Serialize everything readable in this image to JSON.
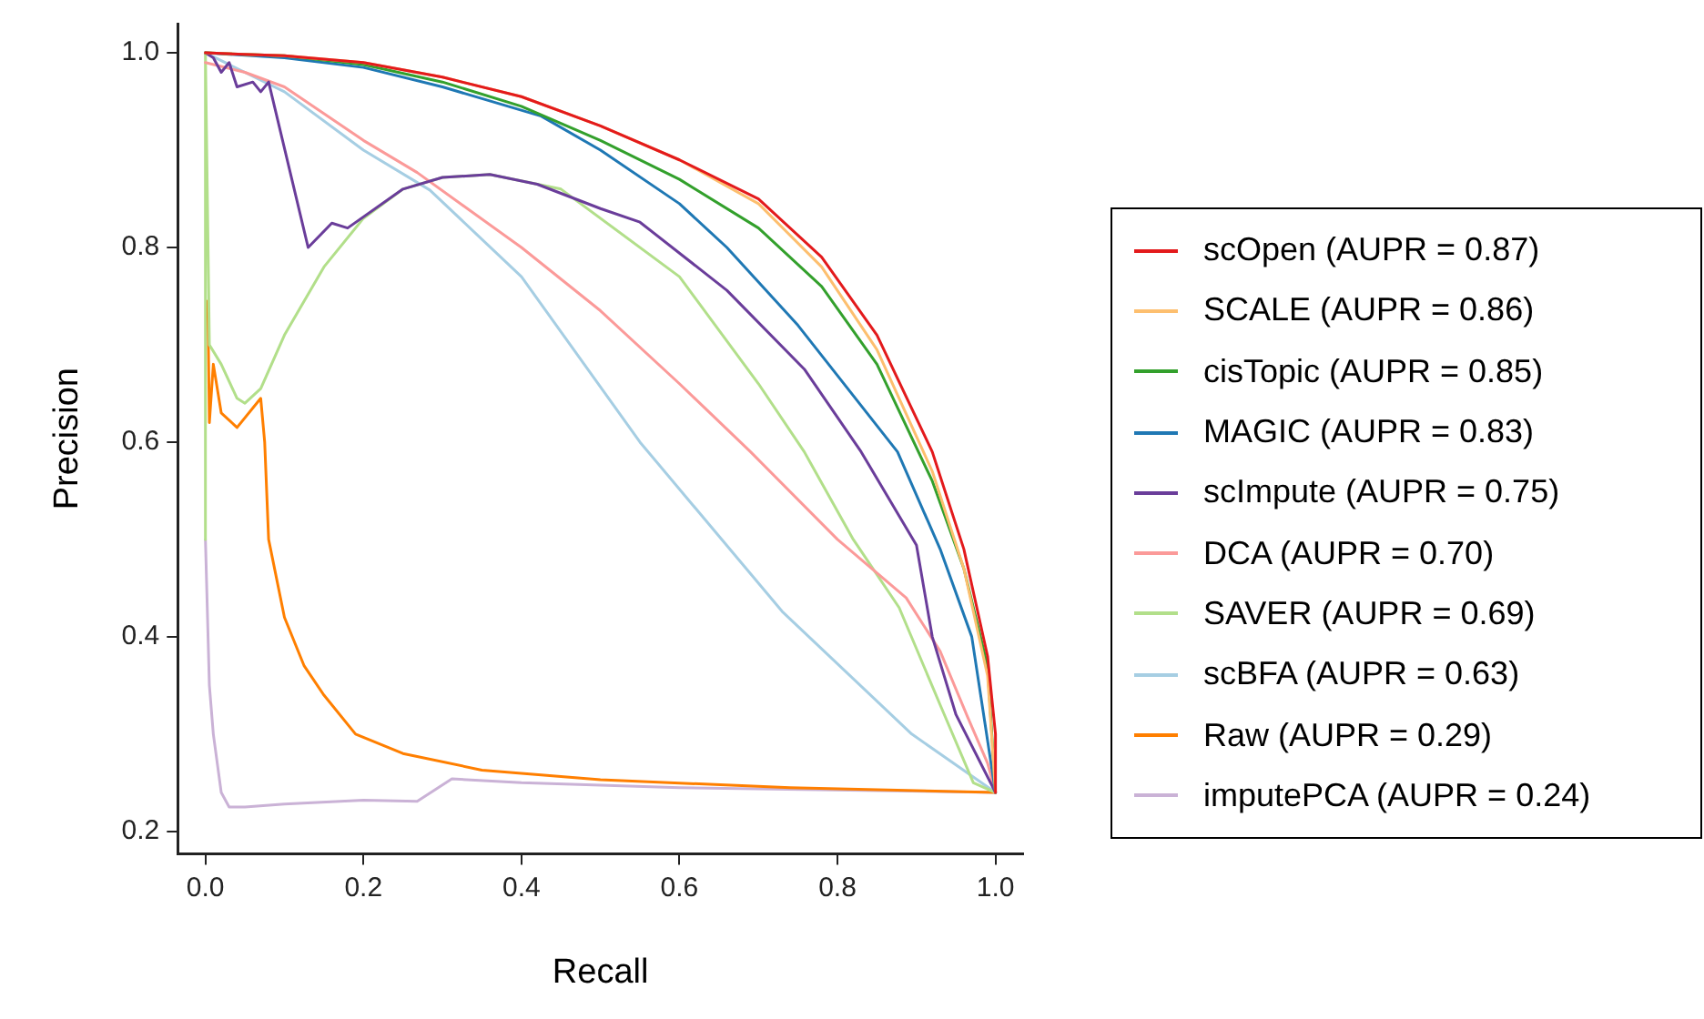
{
  "chart_data": {
    "type": "line",
    "xlabel": "Recall",
    "ylabel": "Precision",
    "xlim": [
      -0.035,
      1.035
    ],
    "ylim": [
      0.177,
      1.03
    ],
    "xticks": [
      {
        "value": 0,
        "label": "0.0"
      },
      0.2,
      0.4,
      0.6,
      0.8,
      {
        "value": 1,
        "label": "1.0"
      }
    ],
    "yticks": [
      0.2,
      0.4,
      0.6,
      0.8,
      {
        "value": 1,
        "label": "1.0"
      }
    ],
    "grid": false,
    "legend": "right",
    "marker": "none",
    "line_style": "solid",
    "series": [
      {
        "name": "scOpen (AUPR = 0.87)",
        "color": "#e31a1c",
        "x": [
          0,
          0.1,
          0.2,
          0.3,
          0.4,
          0.5,
          0.6,
          0.7,
          0.78,
          0.85,
          0.92,
          0.96,
          0.99,
          1,
          1
        ],
        "values": [
          1,
          0.997,
          0.99,
          0.975,
          0.955,
          0.925,
          0.89,
          0.85,
          0.79,
          0.71,
          0.59,
          0.49,
          0.38,
          0.3,
          0.24
        ]
      },
      {
        "name": "SCALE (AUPR = 0.86)",
        "color": "#fdbf6f",
        "x": [
          0,
          0.1,
          0.2,
          0.3,
          0.4,
          0.5,
          0.6,
          0.7,
          0.78,
          0.85,
          0.92,
          0.96,
          0.99,
          1
        ],
        "values": [
          1,
          0.997,
          0.99,
          0.975,
          0.955,
          0.925,
          0.89,
          0.845,
          0.78,
          0.695,
          0.57,
          0.47,
          0.36,
          0.24
        ]
      },
      {
        "name": "cisTopic (AUPR = 0.85)",
        "color": "#33a02c",
        "x": [
          0,
          0.1,
          0.2,
          0.3,
          0.4,
          0.5,
          0.6,
          0.7,
          0.78,
          0.85,
          0.92,
          0.96,
          0.99,
          1
        ],
        "values": [
          1,
          0.997,
          0.988,
          0.97,
          0.945,
          0.91,
          0.87,
          0.82,
          0.76,
          0.68,
          0.56,
          0.47,
          0.37,
          0.24
        ]
      },
      {
        "name": "MAGIC (AUPR = 0.83)",
        "color": "#1f78b4",
        "x": [
          0,
          0.1,
          0.2,
          0.3,
          0.425,
          0.5,
          0.6,
          0.66,
          0.75,
          0.876,
          0.93,
          0.97,
          1
        ],
        "values": [
          1,
          0.995,
          0.985,
          0.965,
          0.935,
          0.9,
          0.845,
          0.8,
          0.72,
          0.59,
          0.49,
          0.4,
          0.24
        ]
      },
      {
        "name": "scImpute (AUPR = 0.75)",
        "color": "#6a3d9a",
        "x": [
          0,
          0.01,
          0.02,
          0.03,
          0.04,
          0.06,
          0.07,
          0.08,
          0.13,
          0.16,
          0.18,
          0.25,
          0.3,
          0.36,
          0.42,
          0.5,
          0.55,
          0.66,
          0.758,
          0.83,
          0.9,
          0.92,
          0.95,
          1
        ],
        "values": [
          1,
          0.995,
          0.98,
          0.99,
          0.965,
          0.97,
          0.96,
          0.97,
          0.8,
          0.825,
          0.82,
          0.86,
          0.872,
          0.875,
          0.865,
          0.84,
          0.826,
          0.756,
          0.675,
          0.59,
          0.494,
          0.4,
          0.32,
          0.24
        ]
      },
      {
        "name": "DCA (AUPR = 0.70)",
        "color": "#fb9a99",
        "x": [
          0,
          0.05,
          0.1,
          0.2,
          0.268,
          0.4,
          0.5,
          0.6,
          0.69,
          0.8,
          0.887,
          0.93,
          0.965,
          0.99,
          1
        ],
        "values": [
          0.99,
          0.98,
          0.965,
          0.91,
          0.877,
          0.8,
          0.735,
          0.66,
          0.59,
          0.5,
          0.44,
          0.385,
          0.317,
          0.27,
          0.24
        ]
      },
      {
        "name": "SAVER (AUPR = 0.69)",
        "color": "#b2df8a",
        "x": [
          0,
          0,
          0.005,
          0.02,
          0.04,
          0.05,
          0.07,
          0.1,
          0.15,
          0.2,
          0.25,
          0.3,
          0.36,
          0.45,
          0.6,
          0.7,
          0.758,
          0.82,
          0.878,
          0.93,
          0.972,
          1
        ],
        "values": [
          0.5,
          1,
          0.7,
          0.68,
          0.645,
          0.64,
          0.655,
          0.71,
          0.78,
          0.83,
          0.86,
          0.872,
          0.875,
          0.86,
          0.77,
          0.66,
          0.59,
          0.5,
          0.43,
          0.33,
          0.25,
          0.24
        ]
      },
      {
        "name": "scBFA (AUPR = 0.63)",
        "color": "#a6cee3",
        "x": [
          0,
          0.1,
          0.2,
          0.284,
          0.4,
          0.55,
          0.73,
          0.894,
          1
        ],
        "values": [
          1,
          0.96,
          0.9,
          0.859,
          0.77,
          0.6,
          0.426,
          0.3,
          0.24
        ]
      },
      {
        "name": "Raw (AUPR = 0.29)",
        "color": "#ff7f00",
        "x": [
          0.003,
          0.005,
          0.01,
          0.02,
          0.04,
          0.07,
          0.075,
          0.08,
          0.1,
          0.125,
          0.15,
          0.19,
          0.25,
          0.35,
          0.5,
          0.74,
          1
        ],
        "values": [
          0.745,
          0.62,
          0.68,
          0.63,
          0.615,
          0.645,
          0.6,
          0.5,
          0.42,
          0.37,
          0.34,
          0.3,
          0.28,
          0.263,
          0.253,
          0.245,
          0.24
        ]
      },
      {
        "name": "imputePCA (AUPR = 0.24)",
        "color": "#cab2d6",
        "x": [
          0,
          0.005,
          0.01,
          0.02,
          0.03,
          0.05,
          0.1,
          0.2,
          0.268,
          0.312,
          0.4,
          0.6,
          1
        ],
        "values": [
          0.5,
          0.35,
          0.3,
          0.24,
          0.225,
          0.225,
          0.228,
          0.232,
          0.231,
          0.254,
          0.25,
          0.245,
          0.24
        ]
      }
    ]
  }
}
